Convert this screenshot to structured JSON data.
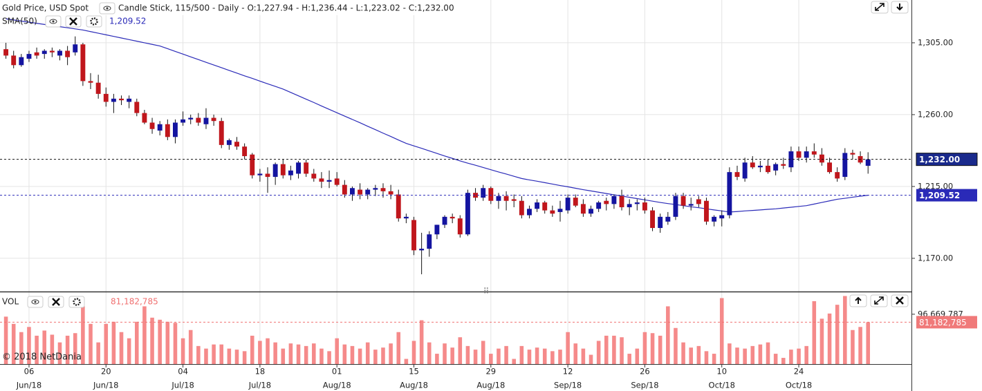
{
  "chart_data": [
    {
      "type": "candlestick",
      "title": "Gold Price, USD Spot",
      "subtitle": "Candle Stick, 115/500 - Daily - O:1,227.94 - H:1,236.44 - L:1,223.02 - C:1,232.00",
      "up_color": "#1414a0",
      "down_color": "#c0161c",
      "close_label": "1,232.00",
      "ohlc": [
        [
          1301,
          1305,
          1295,
          1297
        ],
        [
          1297,
          1300,
          1289,
          1291
        ],
        [
          1291,
          1298,
          1290,
          1296
        ],
        [
          1295,
          1300,
          1293,
          1298
        ],
        [
          1299,
          1302,
          1295,
          1297
        ],
        [
          1298,
          1301,
          1295,
          1300
        ],
        [
          1300,
          1302,
          1296,
          1299
        ],
        [
          1297,
          1301,
          1294,
          1300
        ],
        [
          1300,
          1303,
          1291,
          1296
        ],
        [
          1299,
          1309,
          1297,
          1304
        ],
        [
          1304,
          1305,
          1278,
          1281
        ],
        [
          1281,
          1286,
          1276,
          1280
        ],
        [
          1280,
          1285,
          1270,
          1273
        ],
        [
          1273,
          1277,
          1265,
          1268
        ],
        [
          1268,
          1273,
          1261,
          1270
        ],
        [
          1270,
          1272,
          1266,
          1269
        ],
        [
          1268,
          1272,
          1264,
          1270
        ],
        [
          1268,
          1270,
          1259,
          1261
        ],
        [
          1261,
          1263,
          1254,
          1255
        ],
        [
          1255,
          1258,
          1248,
          1251
        ],
        [
          1250,
          1256,
          1247,
          1254
        ],
        [
          1254,
          1257,
          1244,
          1246
        ],
        [
          1246,
          1257,
          1242,
          1255
        ],
        [
          1255,
          1262,
          1253,
          1257
        ],
        [
          1257,
          1260,
          1254,
          1258
        ],
        [
          1258,
          1261,
          1253,
          1255
        ],
        [
          1254,
          1264,
          1251,
          1258
        ],
        [
          1258,
          1260,
          1253,
          1256
        ],
        [
          1256,
          1258,
          1239,
          1241
        ],
        [
          1241,
          1245,
          1238,
          1244
        ],
        [
          1243,
          1246,
          1238,
          1240
        ],
        [
          1240,
          1242,
          1232,
          1234
        ],
        [
          1235,
          1236,
          1220,
          1222
        ],
        [
          1222,
          1226,
          1218,
          1223
        ],
        [
          1223,
          1227,
          1211,
          1221
        ],
        [
          1221,
          1230,
          1216,
          1229
        ],
        [
          1229,
          1232,
          1220,
          1222
        ],
        [
          1222,
          1228,
          1219,
          1225
        ],
        [
          1223,
          1231,
          1220,
          1230
        ],
        [
          1230,
          1232,
          1221,
          1223
        ],
        [
          1223,
          1226,
          1218,
          1220
        ],
        [
          1220,
          1224,
          1214,
          1218
        ],
        [
          1218,
          1225,
          1214,
          1219
        ],
        [
          1220,
          1224,
          1215,
          1216
        ],
        [
          1216,
          1219,
          1208,
          1210
        ],
        [
          1210,
          1215,
          1206,
          1214
        ],
        [
          1213,
          1217,
          1207,
          1210
        ],
        [
          1210,
          1214,
          1207,
          1213
        ],
        [
          1213,
          1216,
          1209,
          1214
        ],
        [
          1214,
          1217,
          1208,
          1212
        ],
        [
          1212,
          1216,
          1207,
          1210
        ],
        [
          1210,
          1213,
          1193,
          1195
        ],
        [
          1195,
          1198,
          1192,
          1196
        ],
        [
          1194,
          1196,
          1172,
          1175
        ],
        [
          1175,
          1186,
          1160,
          1176
        ],
        [
          1176,
          1187,
          1171,
          1185
        ],
        [
          1185,
          1191,
          1182,
          1191
        ],
        [
          1191,
          1197,
          1189,
          1196
        ],
        [
          1196,
          1198,
          1192,
          1195
        ],
        [
          1195,
          1197,
          1183,
          1185
        ],
        [
          1185,
          1213,
          1184,
          1211
        ],
        [
          1211,
          1214,
          1206,
          1208
        ],
        [
          1208,
          1216,
          1206,
          1214
        ],
        [
          1214,
          1215,
          1204,
          1206
        ],
        [
          1206,
          1211,
          1201,
          1209
        ],
        [
          1209,
          1212,
          1200,
          1206
        ],
        [
          1207,
          1210,
          1202,
          1206
        ],
        [
          1206,
          1209,
          1195,
          1197
        ],
        [
          1197,
          1203,
          1195,
          1201
        ],
        [
          1201,
          1207,
          1199,
          1205
        ],
        [
          1205,
          1206,
          1198,
          1200
        ],
        [
          1200,
          1203,
          1196,
          1198
        ],
        [
          1199,
          1206,
          1193,
          1201
        ],
        [
          1200,
          1210,
          1198,
          1208
        ],
        [
          1208,
          1210,
          1202,
          1203
        ],
        [
          1204,
          1207,
          1196,
          1198
        ],
        [
          1198,
          1203,
          1196,
          1201
        ],
        [
          1201,
          1206,
          1199,
          1205
        ],
        [
          1206,
          1208,
          1200,
          1204
        ],
        [
          1204,
          1210,
          1201,
          1209
        ],
        [
          1209,
          1213,
          1200,
          1202
        ],
        [
          1202,
          1207,
          1197,
          1204
        ],
        [
          1204,
          1207,
          1200,
          1205
        ],
        [
          1205,
          1208,
          1198,
          1200
        ],
        [
          1200,
          1202,
          1187,
          1189
        ],
        [
          1189,
          1198,
          1186,
          1196
        ],
        [
          1193,
          1199,
          1191,
          1196
        ],
        [
          1196,
          1211,
          1194,
          1209
        ],
        [
          1209,
          1211,
          1201,
          1203
        ],
        [
          1203,
          1208,
          1200,
          1204
        ],
        [
          1207,
          1209,
          1202,
          1204
        ],
        [
          1206,
          1208,
          1191,
          1193
        ],
        [
          1193,
          1197,
          1190,
          1196
        ],
        [
          1195,
          1200,
          1190,
          1197
        ],
        [
          1197,
          1227,
          1195,
          1224
        ],
        [
          1224,
          1228,
          1219,
          1221
        ],
        [
          1220,
          1233,
          1218,
          1230
        ],
        [
          1230,
          1234,
          1226,
          1227
        ],
        [
          1227,
          1231,
          1224,
          1228
        ],
        [
          1228,
          1232,
          1223,
          1224
        ],
        [
          1225,
          1230,
          1222,
          1229
        ],
        [
          1229,
          1233,
          1226,
          1228
        ],
        [
          1227,
          1240,
          1224,
          1237
        ],
        [
          1237,
          1240,
          1231,
          1233
        ],
        [
          1233,
          1240,
          1230,
          1237
        ],
        [
          1237,
          1242,
          1233,
          1235
        ],
        [
          1235,
          1239,
          1228,
          1230
        ],
        [
          1230,
          1233,
          1223,
          1224
        ],
        [
          1224,
          1227,
          1218,
          1220
        ],
        [
          1221,
          1239,
          1219,
          1236
        ],
        [
          1236,
          1238,
          1232,
          1235
        ],
        [
          1234,
          1237,
          1229,
          1230
        ],
        [
          1227.94,
          1236.44,
          1223.02,
          1232.0
        ]
      ],
      "series": [
        {
          "name": "SMA(50)",
          "color": "#2a2ab8",
          "value_label": "1,209.52",
          "values": [
            1320,
            1319.3,
            1318.6,
            1317.9,
            1317.2,
            1316.5,
            1315.8,
            1315.1,
            1314.4,
            1313.7,
            1313,
            1312,
            1311,
            1310,
            1309,
            1308,
            1307,
            1306,
            1305,
            1304,
            1303,
            1301.3,
            1299.6,
            1297.9,
            1296.2,
            1294.5,
            1292.8,
            1291.1,
            1289.4,
            1287.7,
            1286,
            1284.3,
            1282.7,
            1281,
            1279.3,
            1277.7,
            1276,
            1273.9,
            1271.8,
            1269.7,
            1267.6,
            1265.4,
            1263.3,
            1261.2,
            1259.1,
            1257,
            1254.9,
            1252.7,
            1250.6,
            1248.4,
            1246.3,
            1244.1,
            1242,
            1240.4,
            1238.9,
            1237.3,
            1235.7,
            1234.1,
            1232.6,
            1231,
            1229.6,
            1228.3,
            1226.9,
            1225.5,
            1224.1,
            1222.8,
            1221.4,
            1220,
            1219.1,
            1218.3,
            1217.4,
            1216.5,
            1215.6,
            1214.8,
            1213.9,
            1213,
            1212.2,
            1211.4,
            1210.6,
            1209.8,
            1209,
            1208.2,
            1207.4,
            1206.6,
            1205.8,
            1205,
            1204.3,
            1203.7,
            1203,
            1202.3,
            1201.7,
            1201,
            1200.3,
            1199.7,
            1199,
            1199.3,
            1199.7,
            1200,
            1200.3,
            1200.7,
            1201,
            1201.5,
            1202,
            1202.5,
            1203,
            1204,
            1205,
            1206,
            1207,
            1207.6,
            1208.3,
            1208.9,
            1209.52
          ]
        }
      ],
      "xlim": [
        -0.77,
        117.64
      ],
      "xticks": [
        {
          "value": 3,
          "label": "06",
          "month": "Jun/18"
        },
        {
          "value": 13,
          "label": "20",
          "month": "Jun/18"
        },
        {
          "value": 23,
          "label": "04",
          "month": "Jul/18"
        },
        {
          "value": 33,
          "label": "18",
          "month": "Jul/18"
        },
        {
          "value": 43,
          "label": "01",
          "month": "Aug/18"
        },
        {
          "value": 53,
          "label": "15",
          "month": "Aug/18"
        },
        {
          "value": 63,
          "label": "29",
          "month": "Aug/18"
        },
        {
          "value": 73,
          "label": "12",
          "month": "Sep/18"
        },
        {
          "value": 83,
          "label": "26",
          "month": "Sep/18"
        },
        {
          "value": 93,
          "label": "10",
          "month": "Oct/18"
        },
        {
          "value": 103,
          "label": "24",
          "month": "Oct/18"
        }
      ],
      "ylim": [
        1149.2,
        1331.8
      ],
      "yticks": [
        {
          "value": 1305,
          "label": "1,305.00"
        },
        {
          "value": 1260,
          "label": "1,260.00"
        },
        {
          "value": 1215,
          "label": "1,215.00"
        },
        {
          "value": 1170,
          "label": "1,170.00"
        }
      ],
      "grid": true
    },
    {
      "type": "bar",
      "title": "VOL",
      "color": "#f58a8a",
      "last_label": "81,182,785",
      "copyright": "© 2018 NetDania",
      "values": [
        92000000,
        78000000,
        62000000,
        72000000,
        55000000,
        65000000,
        57000000,
        42000000,
        55000000,
        60000000,
        112000000,
        78000000,
        42000000,
        78000000,
        82000000,
        62000000,
        50000000,
        82000000,
        112000000,
        90000000,
        86000000,
        82000000,
        80000000,
        50000000,
        66000000,
        35000000,
        30000000,
        38000000,
        38000000,
        30000000,
        28000000,
        25000000,
        55000000,
        45000000,
        50000000,
        42000000,
        30000000,
        40000000,
        38000000,
        35000000,
        40000000,
        30000000,
        25000000,
        50000000,
        38000000,
        35000000,
        30000000,
        42000000,
        28000000,
        32000000,
        40000000,
        62000000,
        10000000,
        45000000,
        85000000,
        42000000,
        20000000,
        40000000,
        32000000,
        52000000,
        35000000,
        28000000,
        45000000,
        20000000,
        30000000,
        35000000,
        10000000,
        35000000,
        28000000,
        32000000,
        30000000,
        25000000,
        28000000,
        62000000,
        40000000,
        30000000,
        18000000,
        45000000,
        55000000,
        55000000,
        52000000,
        20000000,
        30000000,
        62000000,
        60000000,
        55000000,
        112000000,
        70000000,
        42000000,
        32000000,
        35000000,
        25000000,
        20000000,
        128000000,
        40000000,
        32000000,
        30000000,
        35000000,
        38000000,
        42000000,
        20000000,
        12000000,
        28000000,
        30000000,
        35000000,
        122000000,
        88000000,
        98000000,
        115000000,
        132000000,
        66000000,
        72000000,
        81182785
      ],
      "ylim": [
        0,
        134000000
      ],
      "yticks": [
        {
          "value": 96669787,
          "label": "96,669,787"
        }
      ]
    }
  ]
}
